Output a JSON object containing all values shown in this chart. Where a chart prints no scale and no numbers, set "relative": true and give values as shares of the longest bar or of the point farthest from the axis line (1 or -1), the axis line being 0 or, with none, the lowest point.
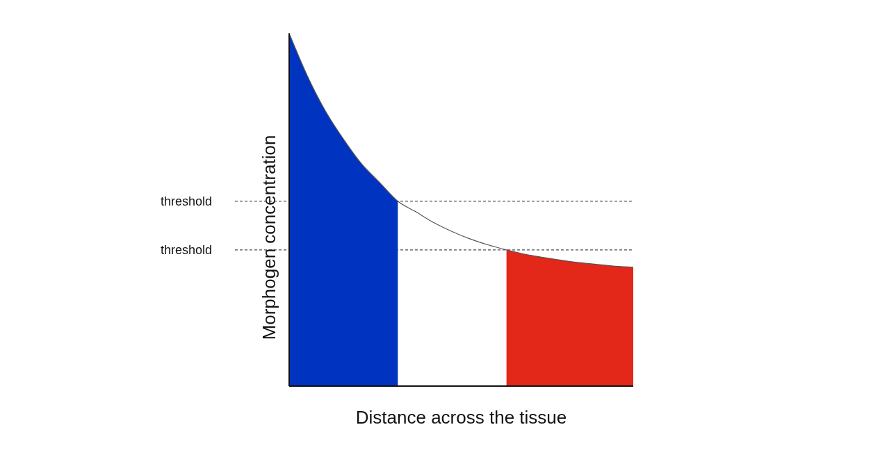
{
  "chart_data": {
    "type": "area",
    "relative": true,
    "xlabel": "Distance across the tissue",
    "ylabel": "Morphogen concentration",
    "categories": [
      null,
      null,
      null,
      null,
      null,
      null,
      null,
      null,
      null,
      null,
      null,
      null,
      null,
      null,
      null,
      null,
      null,
      null,
      null,
      null
    ],
    "series": [
      {
        "color": "#0033c0",
        "values": [
          1.0,
          0.88,
          0.78,
          0.7,
          0.63,
          0.577,
          0.524,
          null,
          null,
          null,
          null,
          null,
          null,
          null,
          null,
          null,
          null,
          null,
          null,
          null
        ]
      },
      {
        "color": "#e32718",
        "values": [
          null,
          null,
          null,
          null,
          null,
          null,
          null,
          null,
          null,
          null,
          null,
          null,
          0.386,
          0.374,
          0.365,
          0.357,
          0.35,
          0.345,
          0.34,
          0.337
        ]
      },
      {
        "type": "line",
        "color": "#555555",
        "values": [
          1.0,
          0.88,
          0.78,
          0.7,
          0.63,
          0.577,
          0.524,
          0.494,
          0.463,
          0.438,
          0.417,
          0.4,
          0.386,
          0.374,
          0.365,
          0.357,
          0.35,
          0.345,
          0.34,
          0.337
        ]
      }
    ],
    "ref_lines": [
      {
        "axis": "y",
        "value": 0.524,
        "label": "threshold",
        "line_style": "dashed"
      },
      {
        "axis": "y",
        "value": 0.386,
        "label": "threshold",
        "line_style": "dashed"
      }
    ],
    "line_style": "solid"
  }
}
